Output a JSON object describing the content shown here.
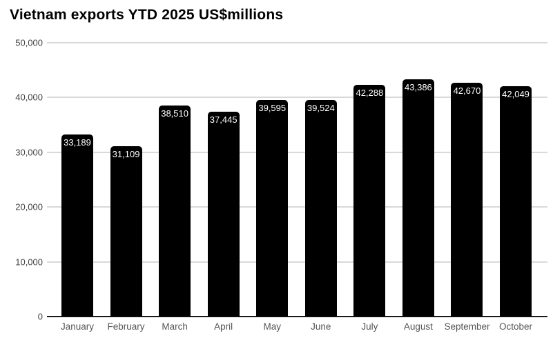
{
  "chart_data": {
    "type": "bar",
    "title": "Vietnam exports YTD 2025 US$millions",
    "categories": [
      "January",
      "February",
      "March",
      "April",
      "May",
      "June",
      "July",
      "August",
      "September",
      "October"
    ],
    "values": [
      33189,
      31109,
      38510,
      37445,
      39595,
      39524,
      42288,
      43386,
      42670,
      42049
    ],
    "value_labels": [
      "33,189",
      "31,109",
      "38,510",
      "37,445",
      "39,595",
      "39,524",
      "42,288",
      "43,386",
      "42,670",
      "42,049"
    ],
    "xlabel": "",
    "ylabel": "",
    "ylim": [
      0,
      50000
    ],
    "ytick_values": [
      0,
      10000,
      20000,
      30000,
      40000,
      50000
    ],
    "ytick_labels": [
      "0",
      "10,000",
      "20,000",
      "30,000",
      "40,000",
      "50,000"
    ],
    "grid": "horizontal",
    "legend": "none",
    "colors": {
      "bar": "#000000",
      "bar_value_label": "#ffffff",
      "gridline": "#d9d9d9",
      "axis_line": "#1a1a1a",
      "y_tick_text": "#424242",
      "x_tick_text": "#555555",
      "title_text": "#000000",
      "background": "#ffffff"
    }
  }
}
